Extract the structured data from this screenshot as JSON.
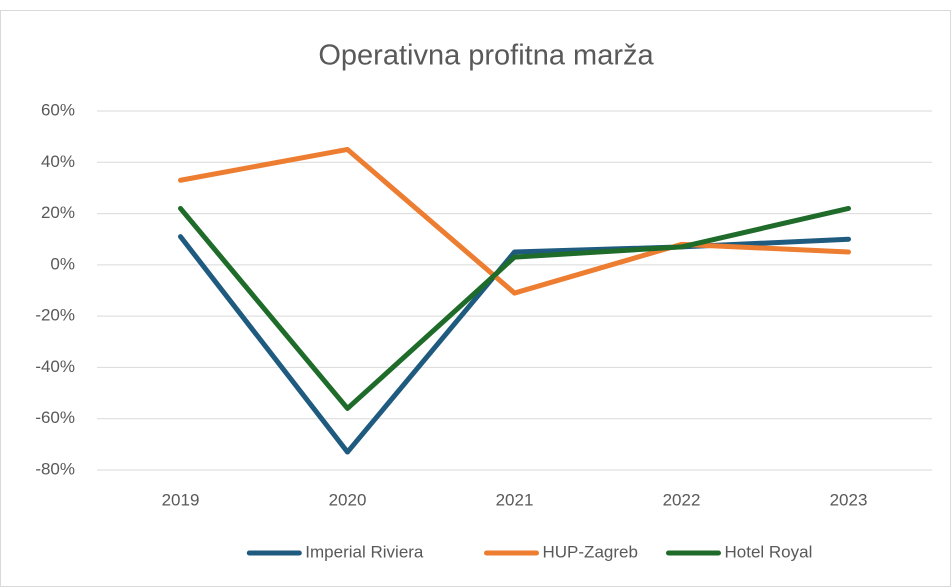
{
  "chart_data": {
    "type": "line",
    "title": "Operativna profitna marža",
    "categories": [
      "2019",
      "2020",
      "2021",
      "2022",
      "2023"
    ],
    "series": [
      {
        "name": "Imperial Riviera",
        "color": "#1f5a7f",
        "values": [
          11,
          -73,
          5,
          7,
          10
        ]
      },
      {
        "name": "HUP-Zagreb",
        "color": "#ed7d31",
        "values": [
          33,
          45,
          -11,
          8,
          5
        ]
      },
      {
        "name": "Hotel Royal",
        "color": "#1e6b2a",
        "values": [
          22,
          -56,
          3,
          7,
          22
        ]
      }
    ],
    "ylim": [
      -80,
      60
    ],
    "yticks": [
      {
        "value": -80,
        "label": "-80%"
      },
      {
        "value": -60,
        "label": "-60%"
      },
      {
        "value": -40,
        "label": "-40%"
      },
      {
        "value": -20,
        "label": "-20%"
      },
      {
        "value": 0,
        "label": "0%"
      },
      {
        "value": 20,
        "label": "20%"
      },
      {
        "value": 40,
        "label": "40%"
      },
      {
        "value": 60,
        "label": "60%"
      }
    ],
    "grid": true,
    "legend": "bottom"
  }
}
